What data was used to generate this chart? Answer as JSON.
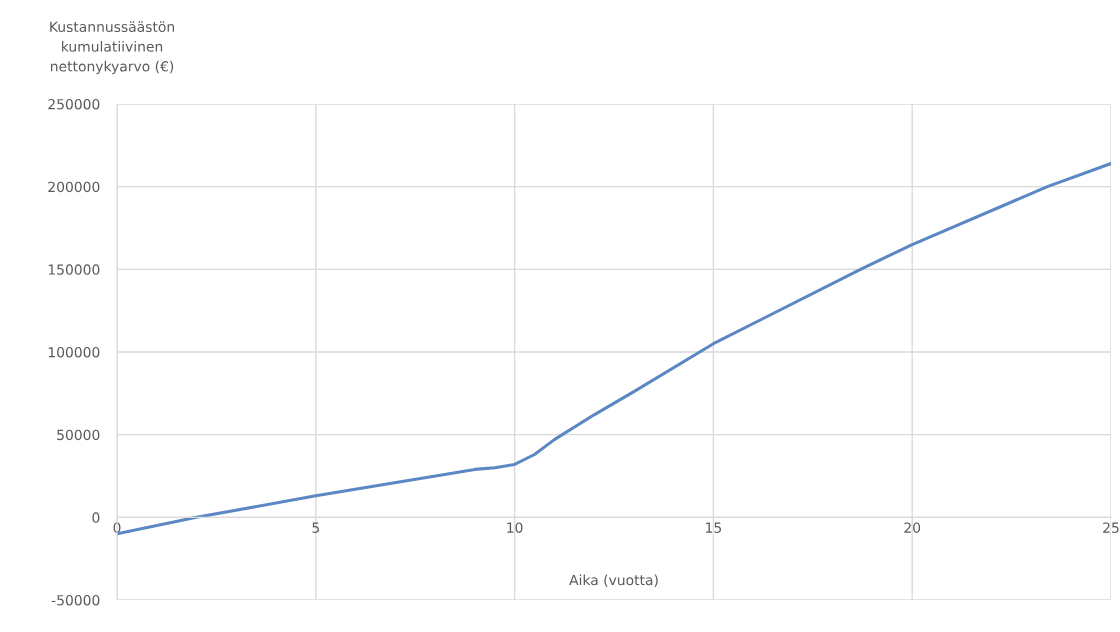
{
  "chart_data": {
    "type": "line",
    "ylabel": "Kustannussäästön\nkumulatiivinen\nnettonykyarvo (€)",
    "xlabel": "Aika (vuotta)",
    "series": [
      {
        "color": "#5b87c5",
        "x": [
          0,
          2,
          5,
          9,
          9.5,
          10,
          10.5,
          11,
          12,
          13,
          15,
          18.7,
          20,
          23.4,
          25
        ],
        "values": [
          -10000,
          0,
          13000,
          29000,
          30000,
          32000,
          38000,
          47000,
          62000,
          76000,
          105000,
          150000,
          165000,
          200000,
          214000
        ]
      }
    ],
    "xlim": [
      0,
      25
    ],
    "xticks": [
      0,
      5,
      10,
      15,
      20,
      25
    ],
    "ylim": [
      -50000,
      250000
    ],
    "yticks": [
      -50000,
      0,
      50000,
      100000,
      150000,
      200000,
      250000
    ],
    "grid": true,
    "marker": "none",
    "line_style": "solid",
    "legend": false
  }
}
